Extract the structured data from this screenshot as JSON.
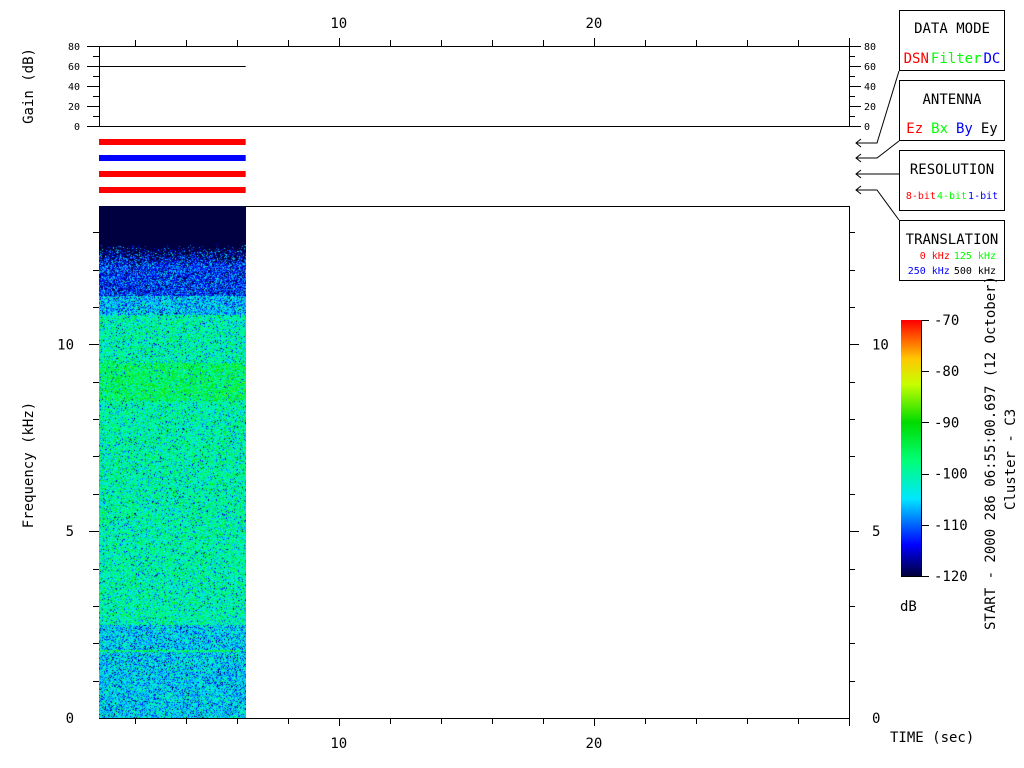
{
  "chart_data": {
    "type": "heatmap",
    "xlabel": "TIME (sec)",
    "x_range": [
      0.6,
      30
    ],
    "x_ticks": [
      "10",
      "20"
    ],
    "data_time_range": [
      0.6,
      6.35
    ],
    "gain_panel": {
      "ylabel": "Gain (dB)",
      "ylim": [
        0,
        80
      ],
      "y_ticks": [
        "0",
        "20",
        "40",
        "60",
        "80"
      ],
      "gain_value_db": 60
    },
    "status_bars": [
      {
        "panel": "DATA MODE",
        "color": "#ff0000"
      },
      {
        "panel": "ANTENNA",
        "color": "#0000ff"
      },
      {
        "panel": "RESOLUTION",
        "color": "#ff0000"
      },
      {
        "panel": "TRANSLATION",
        "color": "#ff0000"
      }
    ],
    "spectrogram": {
      "ylabel": "Frequency (kHz)",
      "ylim": [
        0,
        13.7
      ],
      "y_ticks": [
        "0",
        "5",
        "10"
      ],
      "noise_floor_top_khz": 12,
      "typical_level_db": -100
    },
    "colorbar": {
      "unit": "dB",
      "range": [
        -120,
        -70
      ],
      "ticks": [
        "-70",
        "-80",
        "-90",
        "-100",
        "-110",
        "-120"
      ]
    },
    "info_text": "START - 2000 286 06:55:00.697 (12 October)",
    "spacecraft": "Cluster - C3"
  },
  "legend": {
    "data_mode": {
      "title": "DATA MODE",
      "items": [
        {
          "label": "DSN",
          "color": "#ff0000"
        },
        {
          "label": "Filter",
          "color": "#00ff00"
        },
        {
          "label": "DC",
          "color": "#0000ff"
        }
      ]
    },
    "antenna": {
      "title": "ANTENNA",
      "items": [
        {
          "label": "Ez",
          "color": "#ff0000"
        },
        {
          "label": "Bx",
          "color": "#00ff00"
        },
        {
          "label": "By",
          "color": "#0000ff"
        },
        {
          "label": "Ey",
          "color": "#000000"
        }
      ]
    },
    "resolution": {
      "title": "RESOLUTION",
      "items": [
        {
          "label": "8-bit",
          "color": "#ff0000"
        },
        {
          "label": "4-bit",
          "color": "#00ff00"
        },
        {
          "label": "1-bit",
          "color": "#0000ff"
        }
      ]
    },
    "translation": {
      "title": "TRANSLATION",
      "items": [
        {
          "label": "0 kHz",
          "color": "#ff0000"
        },
        {
          "label": "125 kHz",
          "color": "#00ff00"
        },
        {
          "label": "250 kHz",
          "color": "#0000ff"
        },
        {
          "label": "500 kHz",
          "color": "#000000"
        }
      ]
    }
  }
}
